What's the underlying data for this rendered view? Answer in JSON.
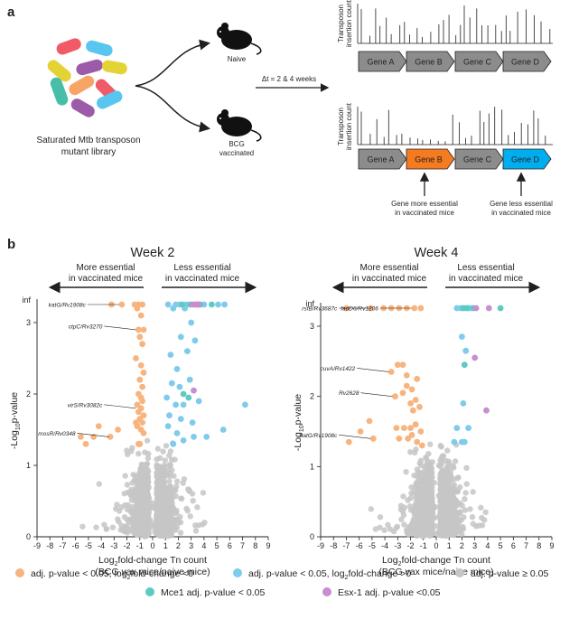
{
  "panel_a": {
    "label": "a",
    "library_label_1": "Saturated Mtb transposon",
    "library_label_2": "mutant library",
    "naive_label": "Naive",
    "bcg_label_1": "BCG",
    "bcg_label_2": "vaccinated",
    "delta_t": "Δt = 2 & 4 weeks",
    "ylabel_1": "Transposon",
    "ylabel_2": "insertion count",
    "genes": [
      "Gene A",
      "Gene B",
      "Gene C",
      "Gene D"
    ],
    "colors": {
      "gene_gray": "#8c8c8c",
      "gene_orange": "#f47b20",
      "gene_blue": "#00aeef"
    },
    "arrow_more_1": "Gene more essential",
    "arrow_more_2": "in vaccinated mice",
    "arrow_less_1": "Gene less essential",
    "arrow_less_2": "in vaccinated mice"
  },
  "panel_b": {
    "label": "b",
    "more_1": "More essential",
    "more_2": "in vaccinated mice",
    "less_1": "Less essential",
    "less_2": "in vaccinated mice",
    "xlabel_1a": "Log",
    "xlabel_1sub": "2",
    "xlabel_1b": "fold-change Tn count",
    "xlabel_2": "(BCG vax mice/naive mice)",
    "ylabel_a": "-Log",
    "ylabel_sub": "10",
    "ylabel_b": "p-value",
    "inf_label": "inf"
  },
  "legend": {
    "neg": "adj. p-value < 0.05, log",
    "neg_sub": "2",
    "neg_tail": "fold-change <0",
    "pos": "adj. p-value < 0.05, log",
    "pos_sub": "2",
    "pos_tail": "fold-change >0",
    "ns": "adj. p-value ≥ 0.05",
    "mce1": "Mce1 adj. p-value < 0.05",
    "esx1": "Esx-1 adj. p-value <0.05",
    "colors": {
      "neg": "#f7b47f",
      "pos": "#7ecbeb",
      "ns": "#c6c6c6",
      "mce1": "#5ecbc2",
      "esx1": "#c78fcf"
    }
  },
  "chart_data": [
    {
      "type": "scatter",
      "title": "Week 2",
      "xlabel": "Log2fold-change Tn count (BCG vax mice/naive mice)",
      "ylabel": "-Log10p-value",
      "xlim": [
        -9,
        9
      ],
      "ylim": [
        0,
        3.3
      ],
      "xticks": [
        -9,
        -8,
        -7,
        -6,
        -5,
        -4,
        -3,
        -2,
        -1,
        0,
        1,
        2,
        3,
        4,
        5,
        6,
        7,
        8,
        9
      ],
      "yticks": [
        0,
        1,
        2,
        3
      ],
      "inf_y": 3.3,
      "annotations": [
        {
          "text": "katG/Rv1908c",
          "x": -2.4,
          "y": 3.3
        },
        {
          "text": "ctpC/Rv3270",
          "x": -1.1,
          "y": 2.9
        },
        {
          "text": "virS/Rv3082c",
          "x": -1.1,
          "y": 1.8
        },
        {
          "text": "mosR/Rv0348",
          "x": -3.2,
          "y": 1.4
        }
      ],
      "series": [
        {
          "name": "adj. p-value < 0.05, log2fold-change <0",
          "x": [
            -3.2,
            -2.4,
            -1.4,
            -1.1,
            -0.8,
            -1.2,
            -0.9,
            -1.1,
            -0.7,
            -1.0,
            -0.8,
            -1.3,
            -0.9,
            -0.7,
            -1.0,
            -0.8,
            -1.1,
            -0.9,
            -0.8,
            -1.2,
            -0.9,
            -1.1,
            -0.7,
            -1.0,
            -0.8,
            -1.2,
            -0.9,
            -0.7,
            -1.1,
            -4.2,
            -4.6,
            -5.6,
            -5.2,
            -3.3,
            -2.7,
            -1.3,
            -1.0
          ],
          "y": [
            3.3,
            3.3,
            3.3,
            3.3,
            3.3,
            3.2,
            3.1,
            2.9,
            2.9,
            2.8,
            2.7,
            2.5,
            2.4,
            2.3,
            2.2,
            2.1,
            2.0,
            1.95,
            1.9,
            1.85,
            1.8,
            1.75,
            1.7,
            1.65,
            1.6,
            1.55,
            1.5,
            1.45,
            1.3,
            1.55,
            1.4,
            1.4,
            1.3,
            1.4,
            1.5,
            1.6,
            1.3
          ]
        },
        {
          "name": "adj. p-value < 0.05, log2fold-change >0",
          "x": [
            1.2,
            1.8,
            2.1,
            2.6,
            3.5,
            4.0,
            5.1,
            5.6,
            1.6,
            2.5,
            3.0,
            2.2,
            3.3,
            1.4,
            2.7,
            1.9,
            1.5,
            2.1,
            2.9,
            1.1,
            1.8,
            2.4,
            3.6,
            1.3,
            2.2,
            3.1,
            7.2,
            5.5,
            4.2,
            3.2,
            1.2,
            1.9,
            2.4,
            1.6
          ],
          "y": [
            3.3,
            3.3,
            3.3,
            3.3,
            3.3,
            3.3,
            3.3,
            3.3,
            3.2,
            3.2,
            3.0,
            2.8,
            2.75,
            2.55,
            2.6,
            2.35,
            2.15,
            2.1,
            2.2,
            1.95,
            1.85,
            1.85,
            1.9,
            1.7,
            1.65,
            1.6,
            1.85,
            1.5,
            1.4,
            1.4,
            1.55,
            1.45,
            1.35,
            1.3
          ]
        },
        {
          "name": "Mce1 adj. p-value < 0.05",
          "x": [
            2.3,
            2.9,
            3.7,
            4.6,
            2.8,
            2.4
          ],
          "y": [
            3.3,
            3.3,
            3.3,
            3.3,
            1.95,
            2.0
          ]
        },
        {
          "name": "Esx-1 adj. p-value <0.05",
          "x": [
            3.1,
            3.3,
            3.4,
            3.6,
            3.2
          ],
          "y": [
            3.3,
            3.3,
            3.3,
            3.3,
            2.05
          ]
        }
      ]
    },
    {
      "type": "scatter",
      "title": "Week 4",
      "xlabel": "Log2fold-change Tn count (BCG vax mice/naive mice)",
      "ylabel": "-Log10p-value",
      "xlim": [
        -9,
        9
      ],
      "ylim": [
        0,
        3.3
      ],
      "xticks": [
        -9,
        -8,
        -7,
        -6,
        -5,
        -4,
        -3,
        -2,
        -1,
        0,
        1,
        2,
        3,
        4,
        5,
        6,
        7,
        8,
        9
      ],
      "yticks": [
        0,
        1,
        2,
        3
      ],
      "inf_y": 3.3,
      "annotations": [
        {
          "text": "rsfB/Rv3687c",
          "x": -4.9,
          "y": 3.3
        },
        {
          "text": "fadD6/Rv1206",
          "x": -1.7,
          "y": 3.3
        },
        {
          "text": "cuvA/Rv1422",
          "x": -3.5,
          "y": 2.35
        },
        {
          "text": "Rv2628",
          "x": -3.2,
          "y": 2.0
        },
        {
          "text": "katG/Rv1908c",
          "x": -4.9,
          "y": 1.4
        }
      ],
      "series": [
        {
          "name": "adj. p-value < 0.05, log2fold-change <0",
          "x": [
            -7.0,
            -5.1,
            -4.1,
            -3.5,
            -2.9,
            -2.3,
            -1.7,
            -1.2,
            -3.5,
            -3.0,
            -2.6,
            -2.3,
            -1.5,
            -2.3,
            -2.6,
            -1.9,
            -3.2,
            -1.6,
            -1.3,
            -2.0,
            -1.8,
            -3.1,
            -2.5,
            -2.0,
            -1.6,
            -1.2,
            -2.9,
            -2.2,
            -1.9,
            -1.5,
            -1.1,
            -4.9,
            -6.8,
            -5.9,
            -5.2
          ],
          "y": [
            3.3,
            3.3,
            3.3,
            3.3,
            3.3,
            3.3,
            3.3,
            3.3,
            2.35,
            2.45,
            2.45,
            2.3,
            2.25,
            2.15,
            2.05,
            2.1,
            2.0,
            1.95,
            1.85,
            1.9,
            1.8,
            1.55,
            1.55,
            1.55,
            1.6,
            1.5,
            1.4,
            1.4,
            1.45,
            1.35,
            1.3,
            1.4,
            1.35,
            1.5,
            1.65
          ]
        },
        {
          "name": "adj. p-value < 0.05, log2fold-change >0",
          "x": [
            1.6,
            1.9,
            2.2,
            2.5,
            2.7,
            2.0,
            2.3,
            2.1,
            1.6,
            1.4,
            2.0,
            2.5,
            2.2
          ],
          "y": [
            3.3,
            3.3,
            3.3,
            3.3,
            3.3,
            2.85,
            2.65,
            1.9,
            1.55,
            1.35,
            1.35,
            1.55,
            1.35
          ]
        },
        {
          "name": "Mce1 adj. p-value < 0.05",
          "x": [
            2.1,
            2.4,
            2.9,
            5.0,
            2.2
          ],
          "y": [
            3.3,
            3.3,
            3.3,
            3.3,
            2.45
          ]
        },
        {
          "name": "Esx-1 adj. p-value <0.05",
          "x": [
            3.1,
            4.1,
            3.0,
            3.9
          ],
          "y": [
            3.3,
            3.3,
            2.55,
            1.8
          ]
        }
      ]
    }
  ]
}
